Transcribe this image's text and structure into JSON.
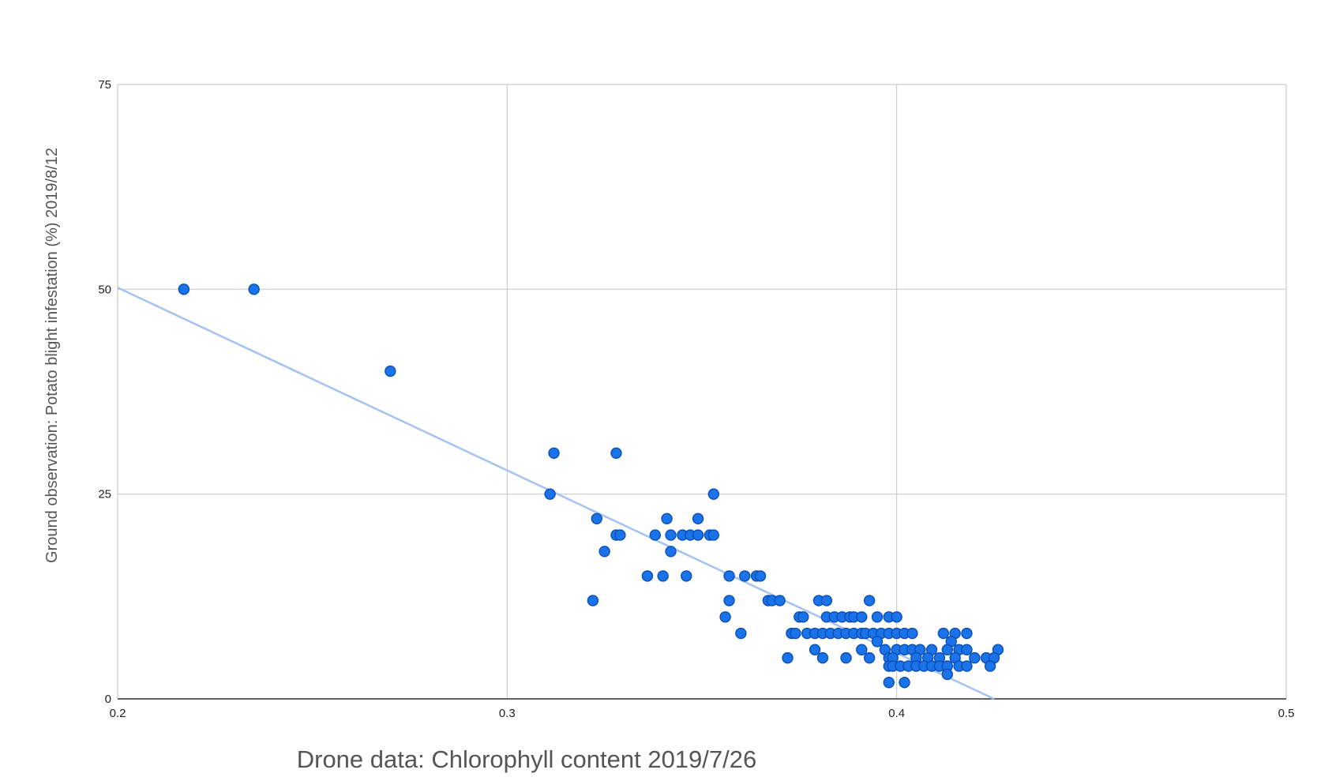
{
  "chart_data": {
    "type": "scatter",
    "title": "",
    "xlabel": "Drone data: Chlorophyll content 2019/7/26",
    "ylabel": "Ground observation:  Potato blight infestation (%) 2019/8/12",
    "xlim": [
      0.2,
      0.5
    ],
    "ylim": [
      0,
      75
    ],
    "xticks": [
      0.2,
      0.3,
      0.4,
      0.5
    ],
    "yticks": [
      0,
      25,
      50,
      75
    ],
    "xtick_labels": [
      "0.2",
      "0.3",
      "0.4",
      "0.5"
    ],
    "ytick_labels": [
      "0",
      "25",
      "50",
      "75"
    ],
    "grid": true,
    "legend": "none",
    "point_color": "#1a73e8",
    "point_edge_color": "#0b4fb5",
    "trendline_color": "#a4c2f4",
    "trendline": {
      "x": [
        0.2,
        0.425
      ],
      "y": [
        50.2,
        0
      ]
    },
    "points": [
      [
        0.217,
        50
      ],
      [
        0.235,
        50
      ],
      [
        0.27,
        40
      ],
      [
        0.312,
        30
      ],
      [
        0.328,
        30
      ],
      [
        0.311,
        25
      ],
      [
        0.353,
        25
      ],
      [
        0.323,
        22
      ],
      [
        0.341,
        22
      ],
      [
        0.349,
        22
      ],
      [
        0.328,
        20
      ],
      [
        0.329,
        20
      ],
      [
        0.338,
        20
      ],
      [
        0.342,
        20
      ],
      [
        0.345,
        20
      ],
      [
        0.347,
        20
      ],
      [
        0.349,
        20
      ],
      [
        0.352,
        20
      ],
      [
        0.353,
        20
      ],
      [
        0.325,
        18
      ],
      [
        0.342,
        18
      ],
      [
        0.336,
        15
      ],
      [
        0.34,
        15
      ],
      [
        0.346,
        15
      ],
      [
        0.357,
        15
      ],
      [
        0.361,
        15
      ],
      [
        0.364,
        15
      ],
      [
        0.365,
        15
      ],
      [
        0.322,
        12
      ],
      [
        0.357,
        12
      ],
      [
        0.367,
        12
      ],
      [
        0.368,
        12
      ],
      [
        0.37,
        12
      ],
      [
        0.38,
        12
      ],
      [
        0.382,
        12
      ],
      [
        0.393,
        12
      ],
      [
        0.356,
        10
      ],
      [
        0.375,
        10
      ],
      [
        0.376,
        10
      ],
      [
        0.382,
        10
      ],
      [
        0.384,
        10
      ],
      [
        0.386,
        10
      ],
      [
        0.388,
        10
      ],
      [
        0.389,
        10
      ],
      [
        0.391,
        10
      ],
      [
        0.395,
        10
      ],
      [
        0.398,
        10
      ],
      [
        0.4,
        10
      ],
      [
        0.36,
        8
      ],
      [
        0.373,
        8
      ],
      [
        0.374,
        8
      ],
      [
        0.377,
        8
      ],
      [
        0.379,
        8
      ],
      [
        0.381,
        8
      ],
      [
        0.383,
        8
      ],
      [
        0.385,
        8
      ],
      [
        0.387,
        8
      ],
      [
        0.389,
        8
      ],
      [
        0.391,
        8
      ],
      [
        0.392,
        8
      ],
      [
        0.394,
        8
      ],
      [
        0.396,
        8
      ],
      [
        0.398,
        8
      ],
      [
        0.4,
        8
      ],
      [
        0.402,
        8
      ],
      [
        0.404,
        8
      ],
      [
        0.412,
        8
      ],
      [
        0.415,
        8
      ],
      [
        0.418,
        8
      ],
      [
        0.395,
        7
      ],
      [
        0.414,
        7
      ],
      [
        0.379,
        6
      ],
      [
        0.391,
        6
      ],
      [
        0.397,
        6
      ],
      [
        0.4,
        6
      ],
      [
        0.402,
        6
      ],
      [
        0.404,
        6
      ],
      [
        0.406,
        6
      ],
      [
        0.409,
        6
      ],
      [
        0.413,
        6
      ],
      [
        0.416,
        6
      ],
      [
        0.418,
        6
      ],
      [
        0.426,
        6
      ],
      [
        0.372,
        5
      ],
      [
        0.381,
        5
      ],
      [
        0.387,
        5
      ],
      [
        0.393,
        5
      ],
      [
        0.398,
        5
      ],
      [
        0.399,
        5
      ],
      [
        0.405,
        5
      ],
      [
        0.408,
        5
      ],
      [
        0.411,
        5
      ],
      [
        0.415,
        5
      ],
      [
        0.42,
        5
      ],
      [
        0.423,
        5
      ],
      [
        0.425,
        5
      ],
      [
        0.398,
        4
      ],
      [
        0.399,
        4
      ],
      [
        0.401,
        4
      ],
      [
        0.403,
        4
      ],
      [
        0.405,
        4
      ],
      [
        0.407,
        4
      ],
      [
        0.409,
        4
      ],
      [
        0.411,
        4
      ],
      [
        0.413,
        4
      ],
      [
        0.416,
        4
      ],
      [
        0.418,
        4
      ],
      [
        0.424,
        4
      ],
      [
        0.413,
        3
      ],
      [
        0.398,
        2
      ],
      [
        0.402,
        2
      ]
    ]
  }
}
